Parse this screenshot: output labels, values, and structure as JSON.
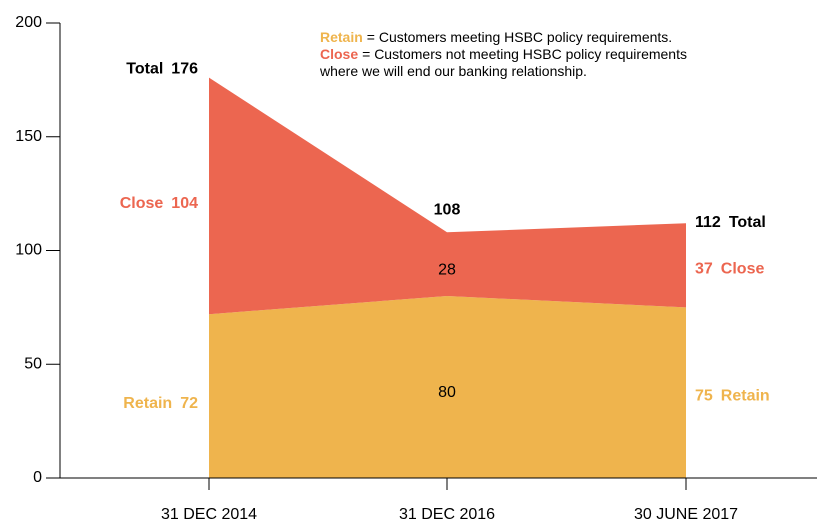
{
  "chart_data": {
    "type": "stacked_area",
    "categories": [
      "31 DEC 2014",
      "31 DEC 2016",
      "30 JUNE 2017"
    ],
    "series": [
      {
        "name": "Retain",
        "color": "#efb44d",
        "values": [
          72,
          80,
          75
        ]
      },
      {
        "name": "Close",
        "color": "#ec6650",
        "values": [
          104,
          28,
          37
        ]
      }
    ],
    "totals": [
      176,
      108,
      112
    ],
    "total_label": "Total",
    "ylim": [
      0,
      200
    ],
    "yticks": [
      0,
      50,
      100,
      150,
      200
    ],
    "notes": [
      {
        "term": "Retain",
        "lines": [
          "= Customers meeting HSBC policy requirements."
        ]
      },
      {
        "term": "Close",
        "lines": [
          "= Customers not meeting HSBC policy requirements",
          "where we will end our banking relationship."
        ]
      }
    ]
  }
}
